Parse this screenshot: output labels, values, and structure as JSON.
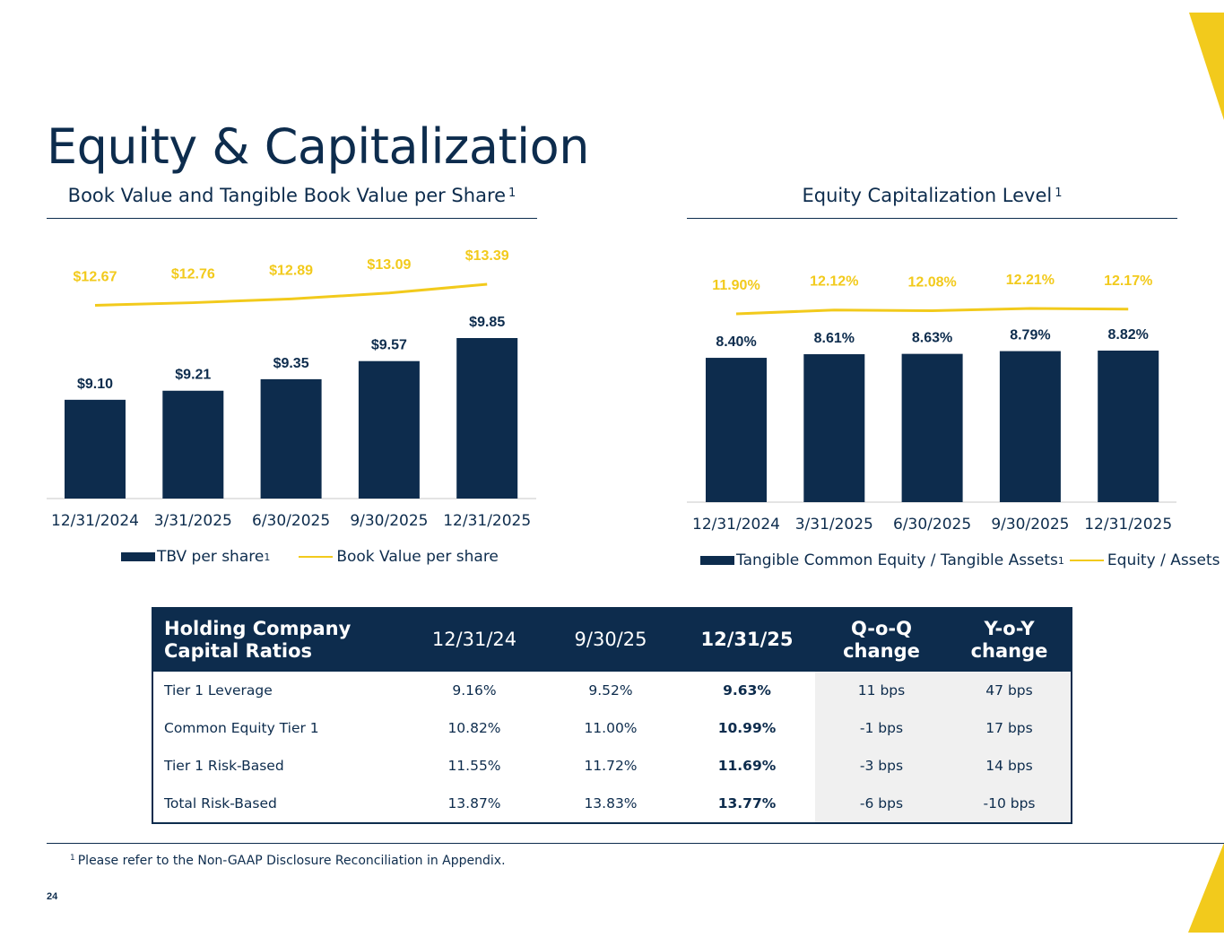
{
  "title": "Equity & Capitalization",
  "colors": {
    "navy": "#0d2c4d",
    "gold": "#f2ca1c",
    "shade": "#f0f0f0"
  },
  "chart_data": [
    {
      "type": "bar",
      "title": "Book Value and Tangible Book Value per Share",
      "title_sup": "1",
      "categories": [
        "12/31/2024",
        "3/31/2025",
        "6/30/2025",
        "9/30/2025",
        "12/31/2025"
      ],
      "series": [
        {
          "name": "TBV per share",
          "name_sup": "1",
          "kind": "bar",
          "values": [
            9.1,
            9.21,
            9.35,
            9.57,
            9.85
          ],
          "labels": [
            "$9.10",
            "$9.21",
            "$9.35",
            "$9.57",
            "$9.85"
          ]
        },
        {
          "name": "Book Value per share",
          "kind": "line",
          "values": [
            12.67,
            12.76,
            12.89,
            13.09,
            13.39
          ],
          "labels": [
            "$12.67",
            "$12.76",
            "$12.89",
            "$13.09",
            "$13.39"
          ]
        }
      ],
      "bar_range": [
        7.9,
        9.85
      ],
      "line_range": [
        12.67,
        13.39
      ]
    },
    {
      "type": "bar",
      "title": "Equity Capitalization Level",
      "title_sup": "1",
      "categories": [
        "12/31/2024",
        "3/31/2025",
        "6/30/2025",
        "9/30/2025",
        "12/31/2025"
      ],
      "series": [
        {
          "name": "Tangible Common Equity / Tangible Assets",
          "name_sup": "1",
          "kind": "bar",
          "values": [
            8.4,
            8.61,
            8.63,
            8.79,
            8.82
          ],
          "labels": [
            "8.40%",
            "8.61%",
            "8.63%",
            "8.79%",
            "8.82%"
          ]
        },
        {
          "name": "Equity / Assets",
          "kind": "line",
          "values": [
            11.9,
            12.12,
            12.08,
            12.21,
            12.17
          ],
          "labels": [
            "11.90%",
            "12.12%",
            "12.08%",
            "12.21%",
            "12.17%"
          ]
        }
      ],
      "bar_range": [
        0,
        8.82
      ],
      "line_range": [
        11.9,
        12.21
      ]
    }
  ],
  "table": {
    "headers": [
      {
        "line1": "Holding Company",
        "line2": "Capital Ratios"
      },
      {
        "line1": "12/31/24",
        "line2": ""
      },
      {
        "line1": "9/30/25",
        "line2": ""
      },
      {
        "line1": "12/31/25",
        "line2": ""
      },
      {
        "line1": "Q-o-Q",
        "line2": "change"
      },
      {
        "line1": "Y-o-Y",
        "line2": "change"
      }
    ],
    "rows": [
      [
        "Tier 1 Leverage",
        "9.16%",
        "9.52%",
        "9.63%",
        "11 bps",
        "47 bps"
      ],
      [
        "Common Equity Tier 1",
        "10.82%",
        "11.00%",
        "10.99%",
        "-1 bps",
        "17 bps"
      ],
      [
        "Tier 1 Risk-Based",
        "11.55%",
        "11.72%",
        "11.69%",
        "-3 bps",
        "14 bps"
      ],
      [
        "Total Risk-Based",
        "13.87%",
        "13.83%",
        "13.77%",
        "-6 bps",
        "-10 bps"
      ]
    ]
  },
  "footnote": {
    "sup": "1",
    "text": "Please refer to the Non-GAAP Disclosure Reconciliation in Appendix."
  },
  "page_number": "24"
}
